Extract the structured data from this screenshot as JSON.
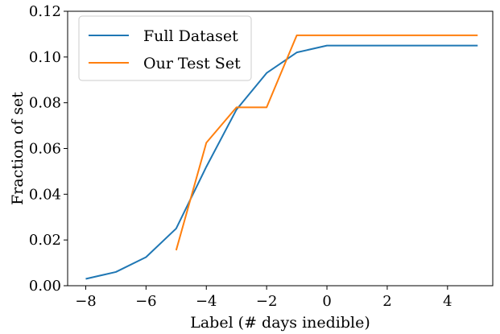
{
  "chart_data": {
    "type": "line",
    "xlabel": "Label (# days inedible)",
    "ylabel": "Fraction of set",
    "xlim": [
      -8.6,
      5.5
    ],
    "ylim": [
      0.0,
      0.12
    ],
    "xticks": [
      -8,
      -6,
      -4,
      -2,
      0,
      2,
      4
    ],
    "xtick_labels": [
      "−8",
      "−6",
      "−4",
      "−2",
      "0",
      "2",
      "4"
    ],
    "yticks": [
      0.0,
      0.02,
      0.04,
      0.06,
      0.08,
      0.1,
      0.12
    ],
    "ytick_labels": [
      "0.00",
      "0.02",
      "0.04",
      "0.06",
      "0.08",
      "0.10",
      "0.12"
    ],
    "grid": false,
    "legend_position": "top-left",
    "series": [
      {
        "name": "Full Dataset",
        "color": "#1f77b4",
        "x": [
          -8,
          -7,
          -6,
          -5,
          -4,
          -3,
          -2,
          -1,
          0,
          1,
          2,
          3,
          4,
          5
        ],
        "y": [
          0.003,
          0.006,
          0.0125,
          0.025,
          0.052,
          0.077,
          0.093,
          0.102,
          0.105,
          0.105,
          0.105,
          0.105,
          0.105,
          0.105
        ]
      },
      {
        "name": "Our Test Set",
        "color": "#ff7f0e",
        "x": [
          -5,
          -4,
          -3,
          -2,
          -1,
          0,
          1,
          2,
          3,
          4,
          5
        ],
        "y": [
          0.0155,
          0.0625,
          0.078,
          0.078,
          0.1095,
          0.1095,
          0.1095,
          0.1095,
          0.1095,
          0.1095,
          0.1095
        ]
      }
    ]
  }
}
